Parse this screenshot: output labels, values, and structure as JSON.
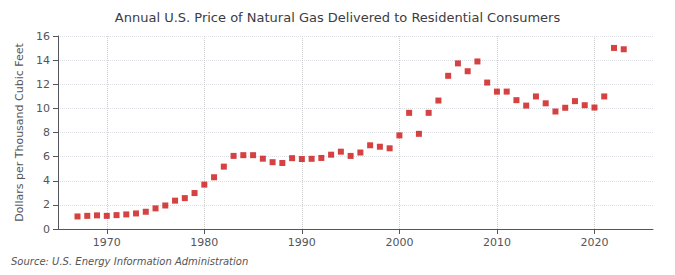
{
  "chart_data": {
    "type": "scatter",
    "title": "Annual U.S. Price of Natural Gas Delivered to Residential Consumers",
    "ylabel": "Dollars per Thousand Cubic Feet",
    "source": "Source: U.S. Energy Information Administration",
    "x": [
      1967,
      1968,
      1969,
      1970,
      1971,
      1972,
      1973,
      1974,
      1975,
      1976,
      1977,
      1978,
      1979,
      1980,
      1981,
      1982,
      1983,
      1984,
      1985,
      1986,
      1987,
      1988,
      1989,
      1990,
      1991,
      1992,
      1993,
      1994,
      1995,
      1996,
      1997,
      1998,
      1999,
      2000,
      2001,
      2002,
      2003,
      2004,
      2005,
      2006,
      2007,
      2008,
      2009,
      2010,
      2011,
      2012,
      2013,
      2014,
      2015,
      2016,
      2017,
      2018,
      2019,
      2020,
      2021,
      2022,
      2023
    ],
    "values": [
      1.04,
      1.09,
      1.13,
      1.09,
      1.15,
      1.21,
      1.29,
      1.43,
      1.71,
      1.95,
      2.35,
      2.56,
      2.98,
      3.68,
      4.29,
      5.17,
      6.06,
      6.12,
      6.12,
      5.83,
      5.54,
      5.47,
      5.87,
      5.8,
      5.82,
      5.89,
      6.16,
      6.41,
      6.06,
      6.34,
      6.94,
      6.82,
      6.69,
      7.76,
      9.63,
      7.89,
      9.63,
      10.65,
      12.7,
      13.73,
      13.08,
      13.89,
      12.14,
      11.39,
      11.39,
      10.68,
      10.23,
      10.99,
      10.42,
      9.74,
      10.05,
      10.6,
      10.26,
      10.07,
      10.99,
      15.01,
      14.9
    ],
    "color": "#cc1111",
    "marker": "square",
    "xlim": [
      1965,
      2026
    ],
    "xticks": [
      1970,
      1980,
      1990,
      2000,
      2010,
      2020
    ],
    "ylim": [
      0,
      16
    ],
    "yticks": [
      0,
      2,
      4,
      6,
      8,
      10,
      12,
      14,
      16
    ],
    "grid": true
  }
}
